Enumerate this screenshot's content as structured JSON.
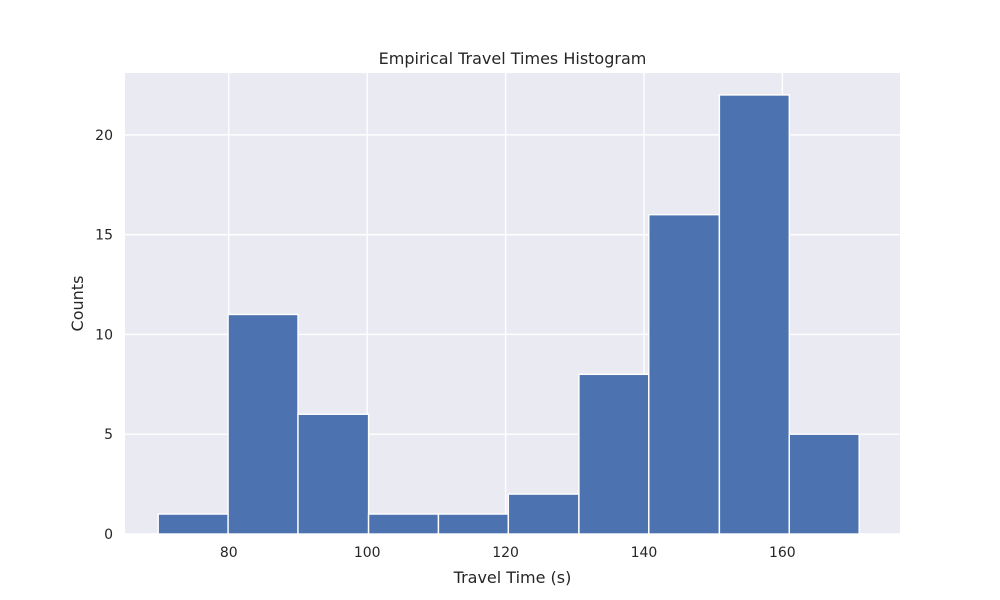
{
  "chart_data": {
    "type": "bar",
    "title": "Empirical Travel Times Histogram",
    "xlabel": "Travel Time (s)",
    "ylabel": "Counts",
    "bins": [
      [
        69.8,
        79.9
      ],
      [
        79.9,
        90.0
      ],
      [
        90.0,
        100.2
      ],
      [
        100.2,
        110.3
      ],
      [
        110.3,
        120.4
      ],
      [
        120.4,
        130.6
      ],
      [
        130.6,
        140.7
      ],
      [
        140.7,
        150.9
      ],
      [
        150.9,
        161.0
      ],
      [
        161.0,
        171.1
      ]
    ],
    "values": [
      1,
      11,
      6,
      1,
      1,
      2,
      8,
      16,
      22,
      5
    ],
    "xlim": [
      65,
      177
    ],
    "ylim": [
      0,
      23.1
    ],
    "xticks": [
      80,
      100,
      120,
      140,
      160
    ],
    "yticks": [
      0,
      5,
      10,
      15,
      20
    ],
    "grid": true,
    "colors": {
      "bar": "#4c72b0",
      "background": "#eaeaf2",
      "grid": "#ffffff",
      "text": "#262626"
    }
  }
}
